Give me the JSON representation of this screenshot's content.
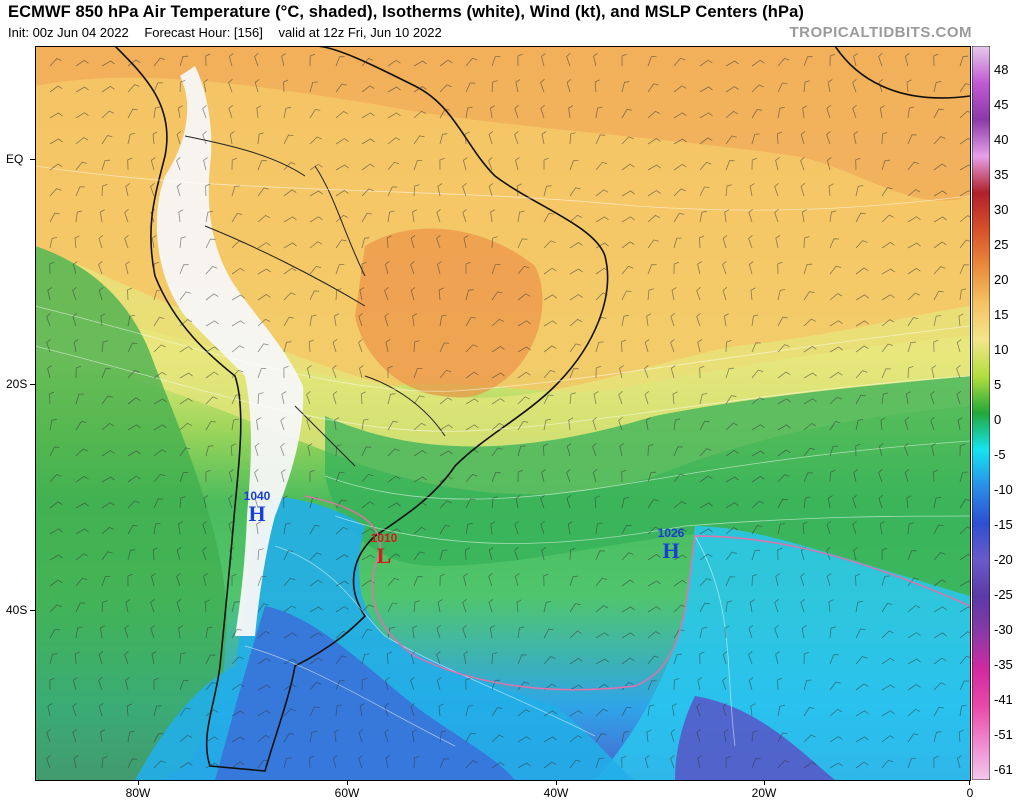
{
  "header": {
    "title": "ECMWF 850 hPa Air Temperature (°C, shaded), Isotherms (white), Wind (kt), and MSLP Centers (hPa)",
    "init": "Init: 00z Jun 04 2022",
    "forecast_hour": "Forecast Hour: [156]",
    "valid": "valid at 12z Fri, Jun 10 2022",
    "brand": "TROPICALTIDBITS.COM"
  },
  "axes": {
    "lat_labels": [
      "EQ",
      "20S",
      "40S"
    ],
    "lon_labels": [
      "80W",
      "60W",
      "40W",
      "20W",
      "0"
    ]
  },
  "pressure_centers": [
    {
      "value": "1040",
      "letter": "H",
      "color": "#1a3fd6"
    },
    {
      "value": "1010",
      "letter": "L",
      "color": "#d61a1a"
    },
    {
      "value": "1026",
      "letter": "H",
      "color": "#1a3fd6"
    }
  ],
  "colorbar": {
    "labels": [
      "48",
      "45",
      "40",
      "35",
      "30",
      "25",
      "20",
      "15",
      "10",
      "5",
      "0",
      "-5",
      "-10",
      "-15",
      "-20",
      "-25",
      "-30",
      "-35",
      "-41",
      "-51",
      "-61"
    ],
    "colors": [
      "#e6cce8",
      "#cf5fd1",
      "#e31d83",
      "#8c3a9e",
      "#4b3ca0",
      "#2f62d2",
      "#2fa0ee",
      "#1fe6ee",
      "#1fad3a",
      "#b4e03d",
      "#f2e48a",
      "#f6c45e",
      "#e68a3a",
      "#c3441a",
      "#8e2016",
      "#f0a8d8"
    ]
  }
}
